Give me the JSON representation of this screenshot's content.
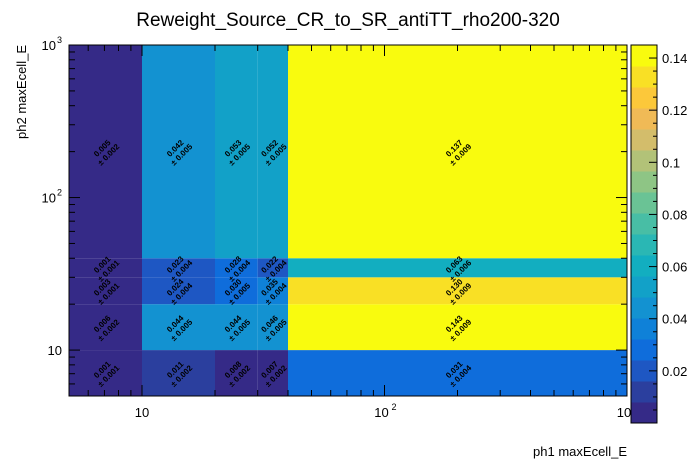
{
  "chart_data": {
    "type": "heatmap",
    "title": "Reweight_Source_CR_to_SR_antiTT_rho200-320",
    "xlabel": "ph1 maxEcell_E",
    "ylabel": "ph2 maxEcell_E",
    "log_x": true,
    "log_y": true,
    "xlim": [
      5,
      1000
    ],
    "ylim": [
      5,
      1000
    ],
    "zlim": [
      0,
      0.145
    ],
    "x_edges": [
      5,
      10,
      20,
      30,
      40,
      1000
    ],
    "y_edges": [
      5,
      10,
      20,
      30,
      40,
      1000
    ],
    "x_ticks": [
      {
        "v": 10,
        "label": "10"
      },
      {
        "v": 100,
        "label": "10",
        "exp": "2"
      },
      {
        "v": 1000,
        "label": "10",
        "exp": "3"
      }
    ],
    "y_ticks": [
      {
        "v": 10,
        "label": "10"
      },
      {
        "v": 100,
        "label": "10",
        "exp": "2"
      },
      {
        "v": 1000,
        "label": "10",
        "exp": "3"
      }
    ],
    "z_ticks": [
      "0.02",
      "0.04",
      "0.06",
      "0.08",
      "0.1",
      "0.12",
      "0.14"
    ],
    "cells": [
      {
        "i": 0,
        "j": 0,
        "v": 0.001,
        "val": "0.001",
        "err": "± 0.001"
      },
      {
        "i": 1,
        "j": 0,
        "v": 0.011,
        "val": "0.011",
        "err": "± 0.002"
      },
      {
        "i": 2,
        "j": 0,
        "v": 0.008,
        "val": "0.008",
        "err": "± 0.002"
      },
      {
        "i": 3,
        "j": 0,
        "v": 0.007,
        "val": "0.007",
        "err": "± 0.002"
      },
      {
        "i": 4,
        "j": 0,
        "v": 0.031,
        "val": "0.031",
        "err": "± 0.004"
      },
      {
        "i": 0,
        "j": 1,
        "v": 0.006,
        "val": "0.006",
        "err": "± 0.002"
      },
      {
        "i": 1,
        "j": 1,
        "v": 0.044,
        "val": "0.044",
        "err": "± 0.005"
      },
      {
        "i": 2,
        "j": 1,
        "v": 0.044,
        "val": "0.044",
        "err": "± 0.005"
      },
      {
        "i": 3,
        "j": 1,
        "v": 0.046,
        "val": "0.046",
        "err": "± 0.005"
      },
      {
        "i": 4,
        "j": 1,
        "v": 0.143,
        "val": "0.143",
        "err": "± 0.009"
      },
      {
        "i": 0,
        "j": 2,
        "v": 0.003,
        "val": "0.003",
        "err": "± 0.001"
      },
      {
        "i": 1,
        "j": 2,
        "v": 0.024,
        "val": "0.024",
        "err": "± 0.004"
      },
      {
        "i": 2,
        "j": 2,
        "v": 0.03,
        "val": "0.030",
        "err": "± 0.005"
      },
      {
        "i": 3,
        "j": 2,
        "v": 0.035,
        "val": "0.035",
        "err": "± 0.004"
      },
      {
        "i": 4,
        "j": 2,
        "v": 0.13,
        "val": "0.130",
        "err": "± 0.009"
      },
      {
        "i": 0,
        "j": 3,
        "v": 0.001,
        "val": "0.001",
        "err": "± 0.001"
      },
      {
        "i": 1,
        "j": 3,
        "v": 0.023,
        "val": "0.023",
        "err": "± 0.004"
      },
      {
        "i": 2,
        "j": 3,
        "v": 0.028,
        "val": "0.028",
        "err": "± 0.004"
      },
      {
        "i": 3,
        "j": 3,
        "v": 0.022,
        "val": "0.022",
        "err": "± 0.004"
      },
      {
        "i": 4,
        "j": 3,
        "v": 0.063,
        "val": "0.063",
        "err": "± 0.006"
      },
      {
        "i": 0,
        "j": 4,
        "v": 0.005,
        "val": "0.005",
        "err": "± 0.002"
      },
      {
        "i": 1,
        "j": 4,
        "v": 0.042,
        "val": "0.042",
        "err": "± 0.005"
      },
      {
        "i": 2,
        "j": 4,
        "v": 0.053,
        "val": "0.053",
        "err": "± 0.005"
      },
      {
        "i": 3,
        "j": 4,
        "v": 0.052,
        "val": "0.052",
        "err": "± 0.005"
      },
      {
        "i": 4,
        "j": 4,
        "v": 0.137,
        "val": "0.137",
        "err": "± 0.009"
      }
    ],
    "palette": [
      "#352a87",
      "#2b3f9e",
      "#1e57c3",
      "#0f6ddb",
      "#0f81d8",
      "#1392d1",
      "#12a1c8",
      "#12aec0",
      "#2ab7b4",
      "#48bea5",
      "#6ac395",
      "#8ec585",
      "#b2c278",
      "#d3bd6b",
      "#f0ba56",
      "#fcc83a",
      "#f9e025",
      "#f9fb0e"
    ]
  }
}
